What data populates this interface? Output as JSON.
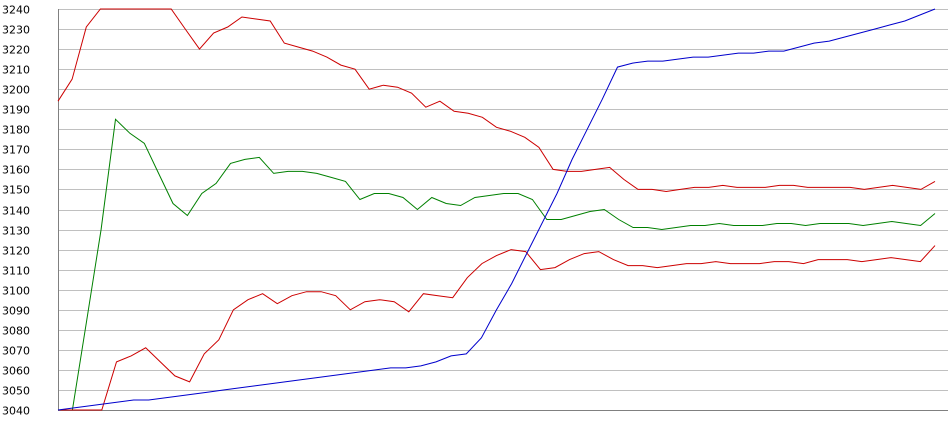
{
  "chart_data": {
    "type": "line",
    "title": "",
    "xlabel": "",
    "ylabel": "",
    "ylim": [
      3040,
      3240
    ],
    "y_ticks": [
      3040,
      3050,
      3060,
      3070,
      3080,
      3090,
      3100,
      3110,
      3120,
      3130,
      3140,
      3150,
      3160,
      3170,
      3180,
      3190,
      3200,
      3210,
      3220,
      3230,
      3240
    ],
    "y_tick_labels": [
      "3040",
      "3050",
      "3060",
      "3070",
      "3080",
      "3090",
      "3100",
      "3110",
      "3120",
      "3130",
      "3140",
      "3150",
      "3160",
      "3170",
      "3180",
      "3190",
      "3200",
      "3210",
      "3220",
      "3230",
      "3240"
    ],
    "grid": true,
    "legend": "none",
    "series": [
      {
        "color": "#cc0000",
        "values": [
          3194,
          3205,
          3231,
          3240,
          3240,
          3240,
          3240,
          3240,
          3240,
          3230,
          3220,
          3228,
          3231,
          3236,
          3235,
          3234,
          3223,
          3221,
          3219,
          3216,
          3212,
          3210,
          3200,
          3202,
          3201,
          3198,
          3191,
          3194,
          3189,
          3188,
          3186,
          3181,
          3179,
          3176,
          3171,
          3160,
          3159,
          3159,
          3160,
          3161,
          3155,
          3150,
          3150,
          3149,
          3150,
          3151,
          3151,
          3152,
          3151,
          3151,
          3151,
          3152,
          3152,
          3151,
          3151,
          3151,
          3151,
          3150,
          3151,
          3152,
          3151,
          3150,
          3154
        ]
      },
      {
        "color": "#008000",
        "values": [
          3040,
          3040,
          3085,
          3130,
          3185,
          3178,
          3173,
          3158,
          3143,
          3137,
          3148,
          3153,
          3163,
          3165,
          3166,
          3158,
          3159,
          3159,
          3158,
          3156,
          3154,
          3145,
          3148,
          3148,
          3146,
          3140,
          3146,
          3143,
          3142,
          3146,
          3147,
          3148,
          3148,
          3145,
          3135,
          3135,
          3137,
          3139,
          3140,
          3135,
          3131,
          3131,
          3130,
          3131,
          3132,
          3132,
          3133,
          3132,
          3132,
          3132,
          3133,
          3133,
          3132,
          3133,
          3133,
          3133,
          3132,
          3133,
          3134,
          3133,
          3132,
          3138
        ]
      },
      {
        "color": "#cc0000",
        "values": [
          3040,
          3040,
          3040,
          3040,
          3064,
          3067,
          3071,
          3064,
          3057,
          3054,
          3068,
          3075,
          3090,
          3095,
          3098,
          3093,
          3097,
          3099,
          3099,
          3097,
          3090,
          3094,
          3095,
          3094,
          3089,
          3098,
          3097,
          3096,
          3106,
          3113,
          3117,
          3120,
          3119,
          3110,
          3111,
          3115,
          3118,
          3119,
          3115,
          3112,
          3112,
          3111,
          3112,
          3113,
          3113,
          3114,
          3113,
          3113,
          3113,
          3114,
          3114,
          3113,
          3115,
          3115,
          3115,
          3114,
          3115,
          3116,
          3115,
          3114,
          3122
        ]
      },
      {
        "color": "#0000cc",
        "values": [
          3040,
          3041,
          3042,
          3043,
          3044,
          3045,
          3045,
          3046,
          3047,
          3048,
          3049,
          3050,
          3051,
          3052,
          3053,
          3054,
          3055,
          3056,
          3057,
          3058,
          3059,
          3060,
          3061,
          3061,
          3062,
          3064,
          3067,
          3068,
          3076,
          3090,
          3103,
          3118,
          3133,
          3148,
          3165,
          3180,
          3195,
          3211,
          3213,
          3214,
          3214,
          3215,
          3216,
          3216,
          3217,
          3218,
          3218,
          3219,
          3219,
          3221,
          3223,
          3224,
          3226,
          3228,
          3230,
          3232,
          3234,
          3237,
          3240
        ]
      }
    ]
  }
}
